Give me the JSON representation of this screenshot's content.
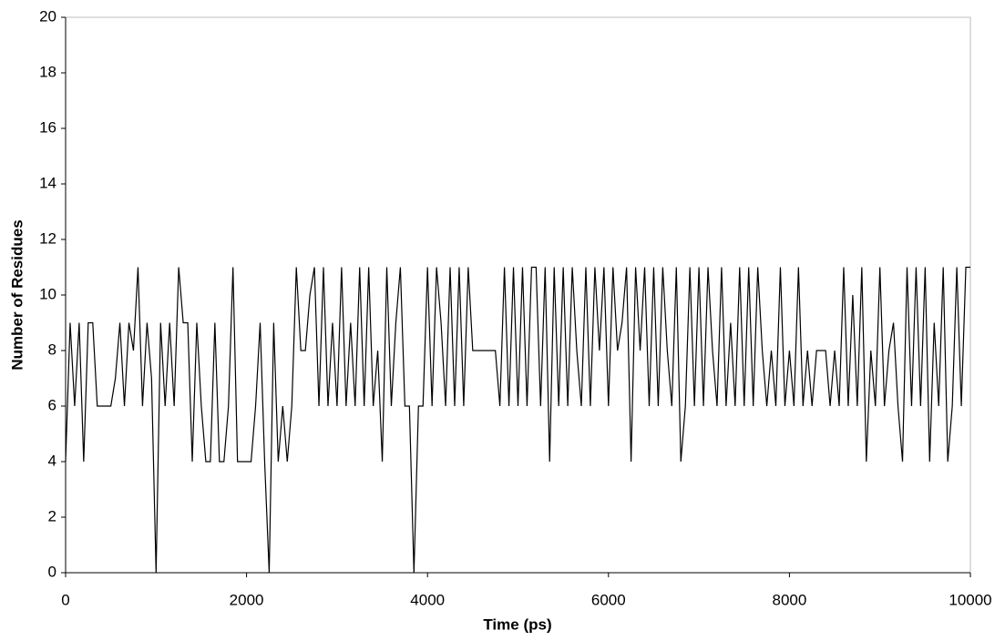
{
  "chart_data": {
    "type": "line",
    "x_label": "Time (ps)",
    "y_label": "Number of Residues",
    "xlim": [
      0,
      10000
    ],
    "xticks": [
      0,
      2000,
      4000,
      6000,
      8000,
      10000
    ],
    "ylim": [
      0,
      20
    ],
    "yticks": [
      0,
      2,
      4,
      6,
      8,
      10,
      12,
      14,
      16,
      18,
      20
    ],
    "grid": false,
    "x": [
      0,
      50,
      100,
      150,
      200,
      250,
      300,
      350,
      400,
      450,
      500,
      550,
      600,
      650,
      700,
      750,
      800,
      850,
      900,
      950,
      1000,
      1050,
      1100,
      1150,
      1200,
      1250,
      1300,
      1350,
      1400,
      1450,
      1500,
      1550,
      1600,
      1650,
      1700,
      1750,
      1800,
      1850,
      1900,
      1950,
      2000,
      2050,
      2100,
      2150,
      2200,
      2250,
      2300,
      2350,
      2400,
      2450,
      2500,
      2550,
      2600,
      2650,
      2700,
      2750,
      2800,
      2850,
      2900,
      2950,
      3000,
      3050,
      3100,
      3150,
      3200,
      3250,
      3300,
      3350,
      3400,
      3450,
      3500,
      3550,
      3600,
      3650,
      3700,
      3750,
      3800,
      3850,
      3900,
      3950,
      4000,
      4050,
      4100,
      4150,
      4200,
      4250,
      4300,
      4350,
      4400,
      4450,
      4500,
      4550,
      4600,
      4650,
      4700,
      4750,
      4800,
      4850,
      4900,
      4950,
      5000,
      5050,
      5100,
      5150,
      5200,
      5250,
      5300,
      5350,
      5400,
      5450,
      5500,
      5550,
      5600,
      5650,
      5700,
      5750,
      5800,
      5850,
      5900,
      5950,
      6000,
      6050,
      6100,
      6150,
      6200,
      6250,
      6300,
      6350,
      6400,
      6450,
      6500,
      6550,
      6600,
      6650,
      6700,
      6750,
      6800,
      6850,
      6900,
      6950,
      7000,
      7050,
      7100,
      7150,
      7200,
      7250,
      7300,
      7350,
      7400,
      7450,
      7500,
      7550,
      7600,
      7650,
      7700,
      7750,
      7800,
      7850,
      7900,
      7950,
      8000,
      8050,
      8100,
      8150,
      8200,
      8250,
      8300,
      8350,
      8400,
      8450,
      8500,
      8550,
      8600,
      8650,
      8700,
      8750,
      8800,
      8850,
      8900,
      8950,
      9000,
      9050,
      9100,
      9150,
      9200,
      9250,
      9300,
      9350,
      9400,
      9450,
      9500,
      9550,
      9600,
      9650,
      9700,
      9750,
      9800,
      9850,
      9900,
      9950,
      10000
    ],
    "series": [
      {
        "color": "#000000",
        "values": [
          4,
          9,
          6,
          9,
          4,
          9,
          9,
          6,
          6,
          6,
          6,
          7,
          9,
          6,
          9,
          8,
          11,
          6,
          9,
          7,
          0,
          9,
          6,
          9,
          6,
          11,
          9,
          9,
          4,
          9,
          6,
          4,
          4,
          9,
          4,
          4,
          6,
          11,
          4,
          4,
          4,
          4,
          6,
          9,
          4,
          0,
          9,
          4,
          6,
          4,
          6,
          11,
          8,
          8,
          10,
          11,
          6,
          11,
          6,
          9,
          6,
          11,
          6,
          9,
          6,
          11,
          6,
          11,
          6,
          8,
          4,
          11,
          6,
          9,
          11,
          6,
          6,
          0,
          6,
          6,
          11,
          6,
          11,
          9,
          6,
          11,
          6,
          11,
          6,
          11,
          8,
          8,
          8,
          8,
          8,
          8,
          6,
          11,
          6,
          11,
          6,
          11,
          6,
          11,
          11,
          6,
          11,
          4,
          11,
          6,
          11,
          6,
          11,
          8,
          6,
          11,
          6,
          11,
          8,
          11,
          6,
          11,
          8,
          9,
          11,
          4,
          11,
          8,
          11,
          6,
          11,
          6,
          11,
          8,
          6,
          11,
          4,
          6,
          11,
          6,
          11,
          6,
          11,
          8,
          6,
          11,
          6,
          9,
          6,
          11,
          6,
          11,
          6,
          11,
          8,
          6,
          8,
          6,
          11,
          6,
          8,
          6,
          11,
          6,
          8,
          6,
          8,
          8,
          8,
          6,
          8,
          6,
          11,
          6,
          10,
          6,
          11,
          4,
          8,
          6,
          11,
          6,
          8,
          9,
          6,
          4,
          11,
          6,
          11,
          6,
          11,
          4,
          9,
          6,
          11,
          4,
          6,
          11,
          6,
          11,
          11
        ]
      }
    ]
  }
}
